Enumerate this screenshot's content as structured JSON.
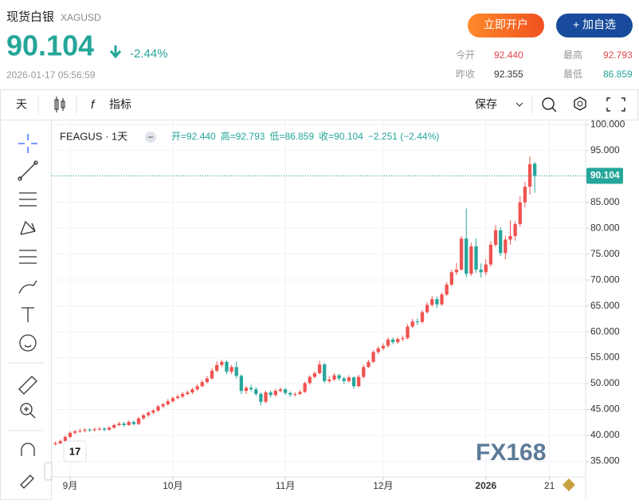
{
  "header": {
    "title": "现货白银",
    "symbol": "XAGUSD",
    "price": "90.104",
    "change": "-2.44%",
    "time": "2026-01-17 05:56:59",
    "buttons": [
      "立即开户",
      "+ 加自选"
    ],
    "stats": [
      [
        "今开",
        "92.440"
      ],
      [
        "最高",
        "92.793"
      ],
      [
        "昨收",
        "92.355"
      ],
      [
        "最低",
        "86.859"
      ]
    ]
  },
  "toolbar": {
    "interval": "天",
    "indicators": "指标",
    "save": "保存"
  },
  "watermark": "FX168",
  "chart_data": {
    "type": "candlestick",
    "symbol": "FEAGUS · 1天",
    "legend": [
      "开=92.440",
      "高=92.793",
      "低=86.859",
      "收=90.104",
      "−2.251 (−2.44%)"
    ],
    "up_color": "#ef5350",
    "down_color": "#26a69a",
    "last_price": 90.104,
    "xlim": [
      -0.75,
      108.4
    ],
    "xticks": [
      {
        "value": 3,
        "label": "9月"
      },
      {
        "value": 24,
        "label": "10月"
      },
      {
        "value": 47,
        "label": "11月"
      },
      {
        "value": 67,
        "label": "12月"
      },
      {
        "value": 88,
        "label": "2026"
      },
      {
        "value": 101,
        "label": "21"
      }
    ],
    "ylim": [
      32,
      100.8
    ],
    "yticks": [
      {
        "value": 35,
        "label": "35.000"
      },
      {
        "value": 40,
        "label": "40.000"
      },
      {
        "value": 45,
        "label": "45.000"
      },
      {
        "value": 50,
        "label": "50.000"
      },
      {
        "value": 55,
        "label": "55.000"
      },
      {
        "value": 60,
        "label": "60.000"
      },
      {
        "value": 65,
        "label": "65.000"
      },
      {
        "value": 70,
        "label": "70.000"
      },
      {
        "value": 75,
        "label": "75.000"
      },
      {
        "value": 80,
        "label": "80.000"
      },
      {
        "value": 85,
        "label": "85.000"
      },
      {
        "value": 90,
        "label": "90.000"
      },
      {
        "value": 95,
        "label": "95.000"
      },
      {
        "value": 100,
        "label": "100.000"
      }
    ],
    "ohlc": [
      [
        38.3,
        38.8,
        38.1,
        38.5
      ],
      [
        38.5,
        39.2,
        38.3,
        38.9
      ],
      [
        38.9,
        40.0,
        38.7,
        39.7
      ],
      [
        39.7,
        40.8,
        39.5,
        40.5
      ],
      [
        40.5,
        41.1,
        40.2,
        40.8
      ],
      [
        40.8,
        41.3,
        40.5,
        40.9
      ],
      [
        40.9,
        41.4,
        40.6,
        41.1
      ],
      [
        41.1,
        41.4,
        40.7,
        41.0
      ],
      [
        41.0,
        41.5,
        40.8,
        41.2
      ],
      [
        41.2,
        41.6,
        40.9,
        41.3
      ],
      [
        41.3,
        41.6,
        40.8,
        41.1
      ],
      [
        41.1,
        41.8,
        40.9,
        41.5
      ],
      [
        41.5,
        42.3,
        41.3,
        42.0
      ],
      [
        42.0,
        42.6,
        41.8,
        42.3
      ],
      [
        42.3,
        42.6,
        41.7,
        42.0
      ],
      [
        42.0,
        42.9,
        41.8,
        42.6
      ],
      [
        42.6,
        42.9,
        41.9,
        42.2
      ],
      [
        42.2,
        43.6,
        42.0,
        43.3
      ],
      [
        43.3,
        44.2,
        43.0,
        43.9
      ],
      [
        43.9,
        44.7,
        43.6,
        44.4
      ],
      [
        44.4,
        45.1,
        44.1,
        44.8
      ],
      [
        44.8,
        45.9,
        44.6,
        45.6
      ],
      [
        45.6,
        46.3,
        45.3,
        46.0
      ],
      [
        46.0,
        47.0,
        45.8,
        46.6
      ],
      [
        46.6,
        47.5,
        46.3,
        47.2
      ],
      [
        47.2,
        47.9,
        47.0,
        47.5
      ],
      [
        47.5,
        48.4,
        47.2,
        48.0
      ],
      [
        48.0,
        48.7,
        47.7,
        48.3
      ],
      [
        48.3,
        49.2,
        48.0,
        48.9
      ],
      [
        48.9,
        49.9,
        48.6,
        49.5
      ],
      [
        49.5,
        50.7,
        49.3,
        50.3
      ],
      [
        50.3,
        51.5,
        50.0,
        51.0
      ],
      [
        51.0,
        53.0,
        50.8,
        52.5
      ],
      [
        52.5,
        54.3,
        52.2,
        53.6
      ],
      [
        53.6,
        54.6,
        53.2,
        54.2
      ],
      [
        54.2,
        54.5,
        51.8,
        52.3
      ],
      [
        52.3,
        53.6,
        51.9,
        53.2
      ],
      [
        53.2,
        54.3,
        51.0,
        51.5
      ],
      [
        51.5,
        51.8,
        48.0,
        48.6
      ],
      [
        48.6,
        49.6,
        48.0,
        49.2
      ],
      [
        49.2,
        49.8,
        48.5,
        48.9
      ],
      [
        48.9,
        49.3,
        47.6,
        48.0
      ],
      [
        48.0,
        48.3,
        45.8,
        46.5
      ],
      [
        46.5,
        48.6,
        46.2,
        48.3
      ],
      [
        48.3,
        48.7,
        47.3,
        47.8
      ],
      [
        47.8,
        49.0,
        47.5,
        48.6
      ],
      [
        48.6,
        49.3,
        48.3,
        48.9
      ],
      [
        48.9,
        49.2,
        47.8,
        48.2
      ],
      [
        48.2,
        48.5,
        47.4,
        47.9
      ],
      [
        47.9,
        48.3,
        47.5,
        48.0
      ],
      [
        48.0,
        48.8,
        47.8,
        48.4
      ],
      [
        48.4,
        50.4,
        48.2,
        50.1
      ],
      [
        50.1,
        51.6,
        49.8,
        51.3
      ],
      [
        51.3,
        52.4,
        51.0,
        52.0
      ],
      [
        52.0,
        54.4,
        51.8,
        53.7
      ],
      [
        53.7,
        54.0,
        50.1,
        50.5
      ],
      [
        50.5,
        51.4,
        50.1,
        50.8
      ],
      [
        50.8,
        52.0,
        50.5,
        51.6
      ],
      [
        51.6,
        51.9,
        50.6,
        51.0
      ],
      [
        51.0,
        51.3,
        50.0,
        50.5
      ],
      [
        50.5,
        51.6,
        50.2,
        51.2
      ],
      [
        51.2,
        51.4,
        49.0,
        49.5
      ],
      [
        49.5,
        51.7,
        49.3,
        51.3
      ],
      [
        51.3,
        53.6,
        51.0,
        53.2
      ],
      [
        53.2,
        54.6,
        53.0,
        54.2
      ],
      [
        54.2,
        56.5,
        54.0,
        56.1
      ],
      [
        56.1,
        57.2,
        55.7,
        56.8
      ],
      [
        56.8,
        57.8,
        56.4,
        57.3
      ],
      [
        57.3,
        58.9,
        57.0,
        58.5
      ],
      [
        58.5,
        58.9,
        57.6,
        58.0
      ],
      [
        58.0,
        59.0,
        57.7,
        58.6
      ],
      [
        58.6,
        59.3,
        58.2,
        58.8
      ],
      [
        58.8,
        61.5,
        58.5,
        61.0
      ],
      [
        61.0,
        62.5,
        60.7,
        62.0
      ],
      [
        62.0,
        62.6,
        61.3,
        61.9
      ],
      [
        61.9,
        64.2,
        61.6,
        63.8
      ],
      [
        63.8,
        65.7,
        63.5,
        65.2
      ],
      [
        65.2,
        66.9,
        64.8,
        66.3
      ],
      [
        66.3,
        66.8,
        64.6,
        65.3
      ],
      [
        65.3,
        67.6,
        65.0,
        67.2
      ],
      [
        67.2,
        69.6,
        66.9,
        69.1
      ],
      [
        69.1,
        72.0,
        68.8,
        71.5
      ],
      [
        71.5,
        73.3,
        71.0,
        72.0
      ],
      [
        72.0,
        78.5,
        71.8,
        78.0
      ],
      [
        78.0,
        83.8,
        70.5,
        71.2
      ],
      [
        71.2,
        77.2,
        70.8,
        76.5
      ],
      [
        76.5,
        78.0,
        71.4,
        72.0
      ],
      [
        72.0,
        73.2,
        70.5,
        71.5
      ],
      [
        71.5,
        74.0,
        70.9,
        73.0
      ],
      [
        73.0,
        77.5,
        72.6,
        76.8
      ],
      [
        76.8,
        80.6,
        76.4,
        79.6
      ],
      [
        79.6,
        80.2,
        74.6,
        75.2
      ],
      [
        75.2,
        78.5,
        74.0,
        77.8
      ],
      [
        77.8,
        81.5,
        76.8,
        78.5
      ],
      [
        78.5,
        81.3,
        77.6,
        80.8
      ],
      [
        80.8,
        86.2,
        80.3,
        85.0
      ],
      [
        85.0,
        88.9,
        84.0,
        88.0
      ],
      [
        88.0,
        93.8,
        86.5,
        92.355
      ],
      [
        92.44,
        92.793,
        86.859,
        90.104
      ]
    ]
  }
}
